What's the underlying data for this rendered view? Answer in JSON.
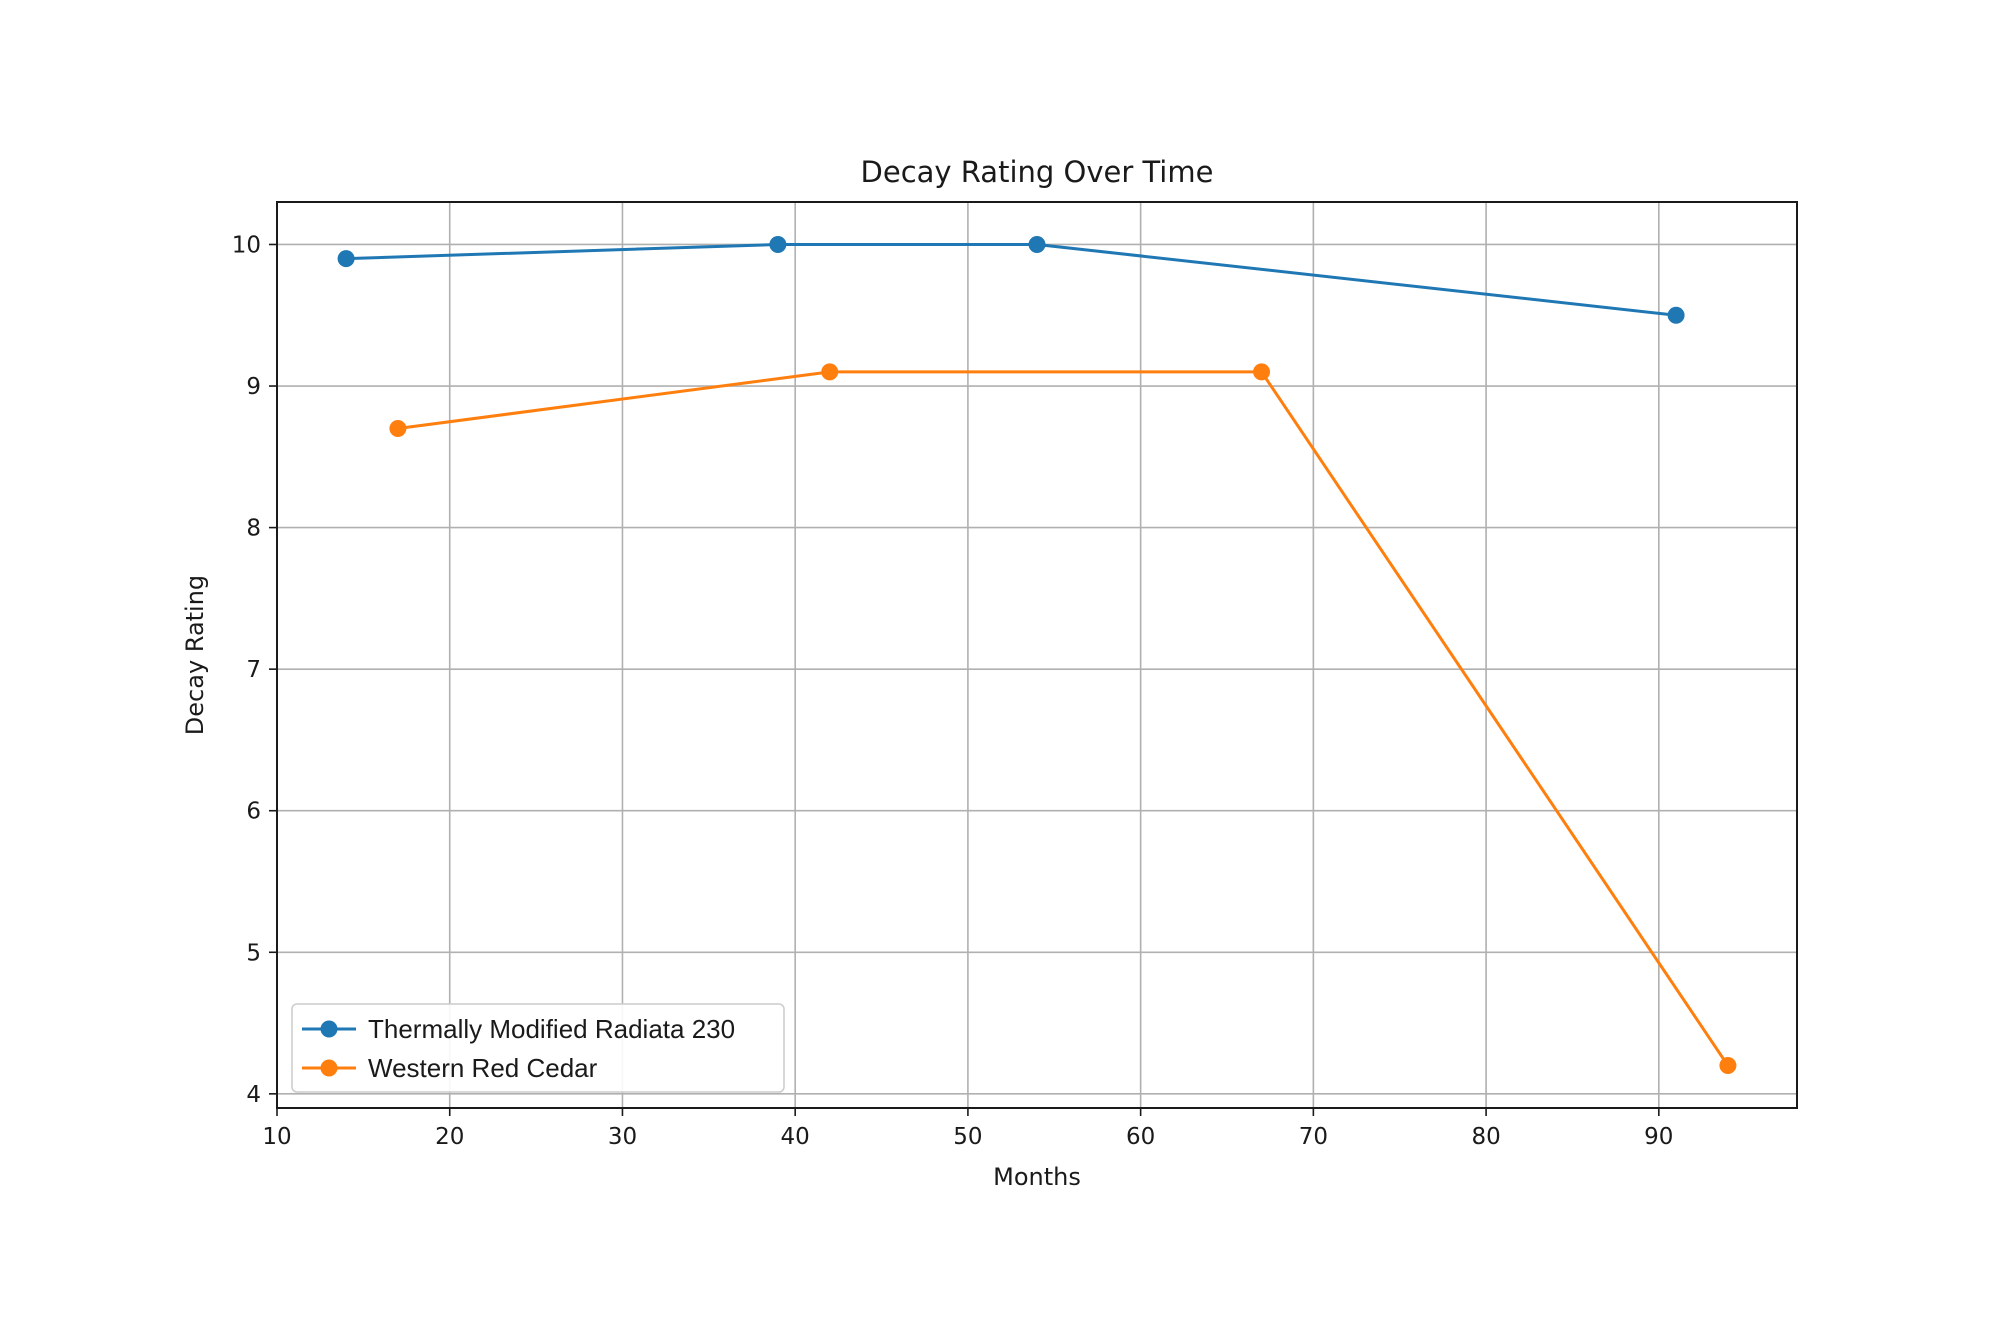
{
  "chart_data": {
    "type": "line",
    "title": "Decay Rating Over Time",
    "xlabel": "Months",
    "ylabel": "Decay Rating",
    "xlim": [
      10,
      98
    ],
    "ylim": [
      3.9,
      10.3
    ],
    "xticks": [
      10,
      20,
      30,
      40,
      50,
      60,
      70,
      80,
      90
    ],
    "yticks": [
      4,
      5,
      6,
      7,
      8,
      9,
      10
    ],
    "xtick_labels": [
      "10",
      "20",
      "30",
      "40",
      "50",
      "60",
      "70",
      "80",
      "90"
    ],
    "ytick_labels": [
      "4",
      "5",
      "6",
      "7",
      "8",
      "9",
      "10"
    ],
    "grid": true,
    "legend_position": "lower-left",
    "series": [
      {
        "name": "Thermally Modified Radiata 230",
        "color": "#1f77b4",
        "marker": "circle",
        "x": [
          14,
          39,
          54,
          91
        ],
        "y": [
          9.9,
          10.0,
          10.0,
          9.5
        ]
      },
      {
        "name": "Western Red Cedar",
        "color": "#ff7f0e",
        "marker": "circle",
        "x": [
          17,
          42,
          67,
          94
        ],
        "y": [
          8.7,
          9.1,
          9.1,
          4.2
        ]
      }
    ]
  }
}
